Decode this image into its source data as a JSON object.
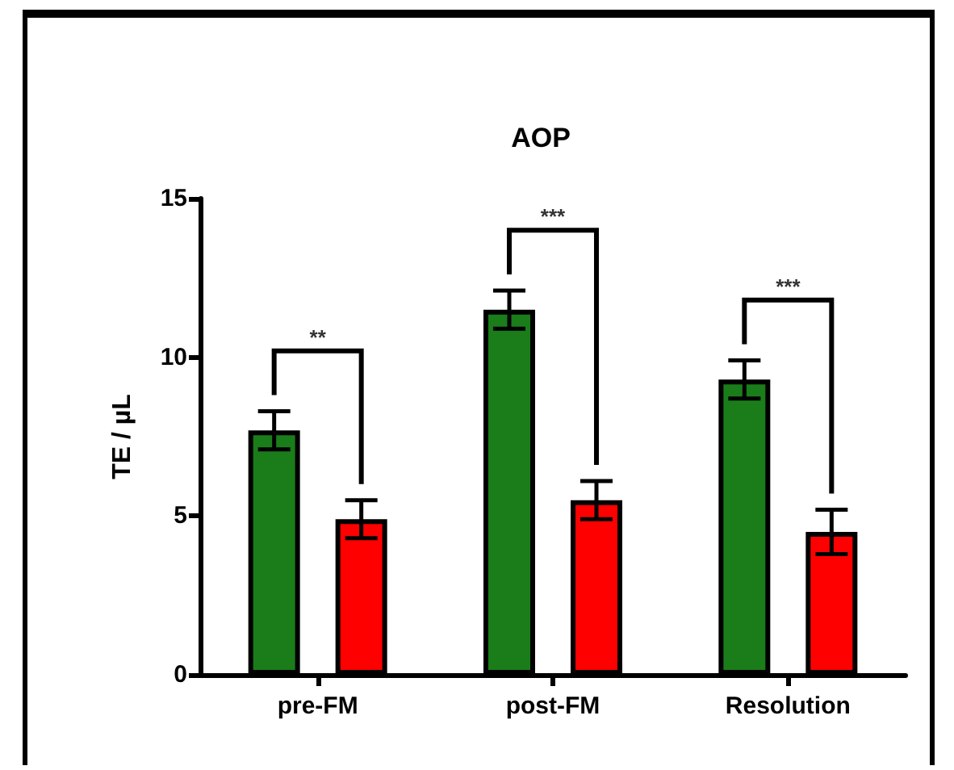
{
  "chart_data": {
    "type": "bar",
    "title": "AOP",
    "ylabel": "TE / µL",
    "categories": [
      "pre-FM",
      "post-FM",
      "Resolution"
    ],
    "series": [
      {
        "color": "#1a7d1a",
        "values": [
          7.7,
          11.5,
          9.3
        ],
        "errors": [
          0.6,
          0.6,
          0.6
        ]
      },
      {
        "color": "#ff0000",
        "values": [
          4.9,
          5.5,
          4.5
        ],
        "errors": [
          0.6,
          0.6,
          0.7
        ]
      }
    ],
    "ylim": [
      0,
      15
    ],
    "yticks": [
      0,
      5,
      10,
      15
    ],
    "grid": false,
    "annotations": [
      "**",
      "***",
      "***"
    ]
  }
}
